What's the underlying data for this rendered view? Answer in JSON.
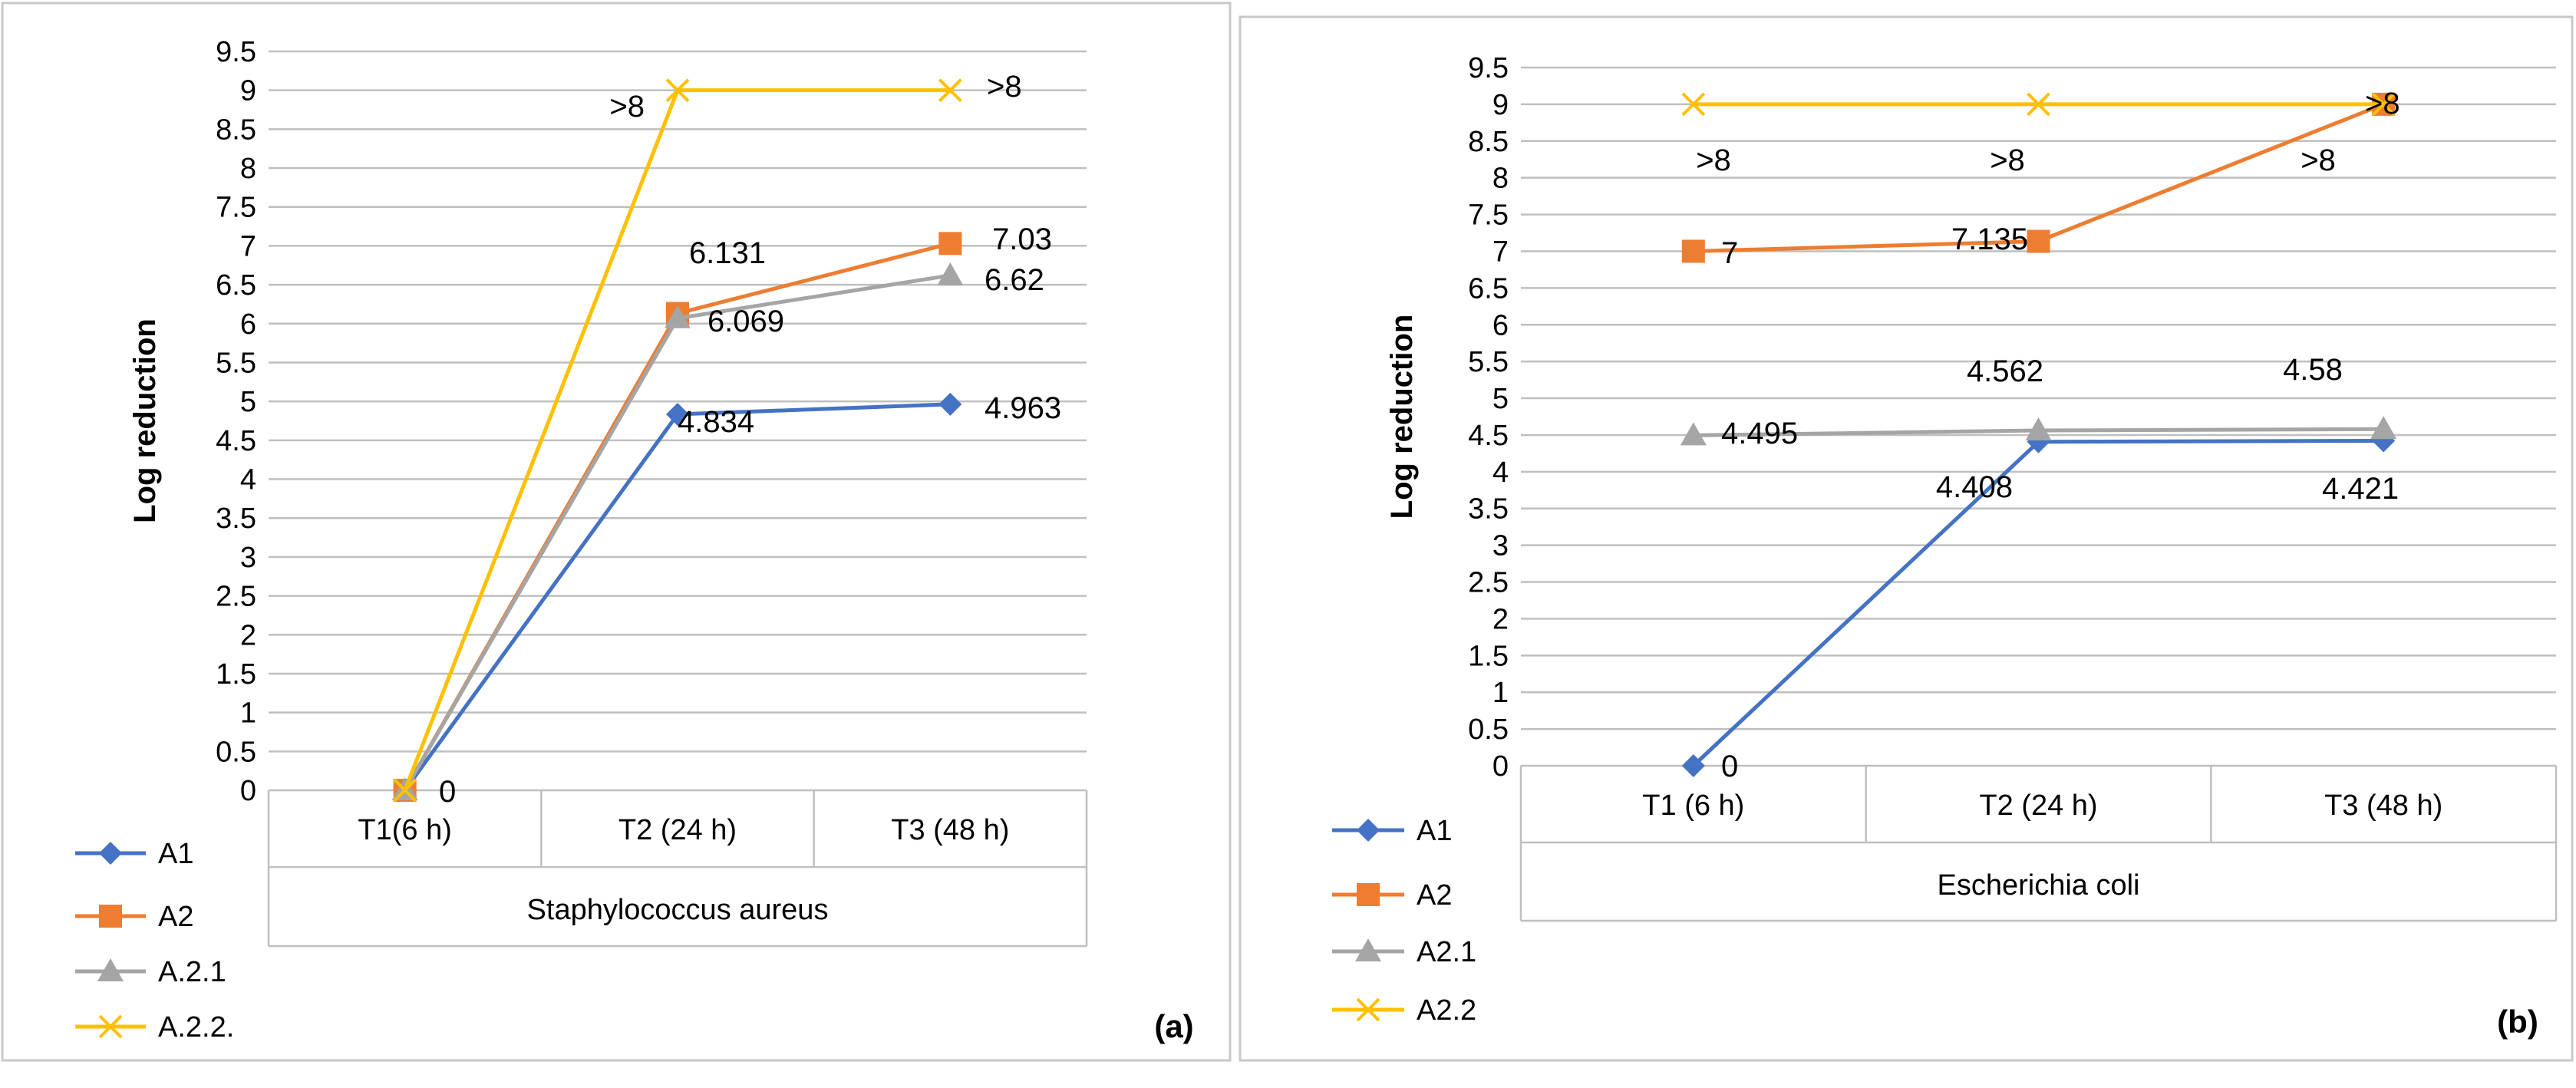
{
  "chart_data": [
    {
      "type": "line",
      "panel_label": "(a)",
      "title": "",
      "xlabel": "Staphylococcus aureus",
      "ylabel": "Log reduction",
      "ylim": [
        0,
        9.5
      ],
      "ytick_step": 0.5,
      "yticks": [
        "0",
        "0.5",
        "1",
        "1.5",
        "2",
        "2.5",
        "3",
        "3.5",
        "4",
        "4.5",
        "5",
        "5.5",
        "6",
        "6.5",
        "7",
        "7.5",
        "8",
        "8.5",
        "9",
        "9.5"
      ],
      "categories": [
        "T1(6 h)",
        "T2 (24 h)",
        "T3 (48 h)"
      ],
      "series": [
        {
          "name": "A1",
          "color": "#4472C4",
          "marker": "diamond",
          "values": [
            0,
            4.834,
            4.963
          ],
          "labels": [
            "",
            "4.834",
            "4.963"
          ]
        },
        {
          "name": "A2",
          "color": "#ED7D31",
          "marker": "square",
          "values": [
            0,
            6.131,
            7.03
          ],
          "labels": [
            "",
            "6.131",
            "7.03"
          ]
        },
        {
          "name": "A.2.1",
          "color": "#A5A5A5",
          "marker": "triangle",
          "values": [
            0,
            6.069,
            6.62
          ],
          "labels": [
            "",
            "6.069",
            "6.62"
          ]
        },
        {
          "name": "A.2.2.",
          "color": "#FFC000",
          "marker": "x",
          "values": [
            0,
            9,
            9
          ],
          "labels": [
            "0",
            ">8",
            ">8"
          ]
        }
      ]
    },
    {
      "type": "line",
      "panel_label": "(b)",
      "title": "",
      "xlabel": "Escherichia coli",
      "ylabel": "Log reduction",
      "ylim": [
        0,
        9.5
      ],
      "ytick_step": 0.5,
      "yticks": [
        "0",
        "0.5",
        "1",
        "1.5",
        "2",
        "2.5",
        "3",
        "3.5",
        "4",
        "4.5",
        "5",
        "5.5",
        "6",
        "6.5",
        "7",
        "7.5",
        "8",
        "8.5",
        "9",
        "9.5"
      ],
      "categories": [
        "T1 (6 h)",
        "T2 (24 h)",
        "T3 (48 h)"
      ],
      "series": [
        {
          "name": "A1",
          "color": "#4472C4",
          "marker": "diamond",
          "values": [
            0,
            4.408,
            4.421
          ],
          "labels": [
            "0",
            "4.408",
            "4.421"
          ]
        },
        {
          "name": "A2",
          "color": "#ED7D31",
          "marker": "square",
          "values": [
            7,
            7.135,
            9
          ],
          "labels": [
            "7",
            "7.135",
            ">8"
          ]
        },
        {
          "name": "A2.1",
          "color": "#A5A5A5",
          "marker": "triangle",
          "values": [
            4.495,
            4.562,
            4.58
          ],
          "labels": [
            "4.495",
            "4.562",
            "4.58"
          ]
        },
        {
          "name": "A2.2",
          "color": "#FFC000",
          "marker": "x",
          "values": [
            9,
            9,
            9
          ],
          "labels": [
            ">8",
            ">8",
            ">8"
          ]
        }
      ]
    }
  ]
}
